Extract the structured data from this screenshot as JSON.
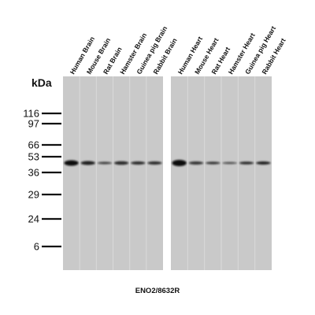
{
  "kda_label": "kDa",
  "markers": [
    "116",
    "97",
    "66",
    "53",
    "36",
    "29",
    "24",
    "6"
  ],
  "lanes": [
    "Human Brain",
    "Mouse Brain",
    "Rat Brain",
    "Hamster Brain",
    "Guinea pig Brain",
    "Rabbit Brain",
    "Human Heart",
    "Mouse Heart",
    "Rat Heart",
    "Hamster Heart",
    "Guinea pig Heart",
    "Rabbit Heart"
  ],
  "caption": "ENO2/8632R"
}
